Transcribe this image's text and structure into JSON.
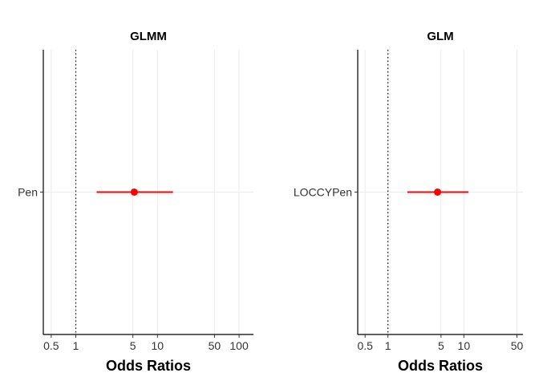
{
  "chart_data": [
    {
      "type": "forest",
      "title": "GLMM",
      "xlabel": "Odds Ratios",
      "xscale": "log",
      "xlim": [
        0.4,
        150
      ],
      "xticks": [
        0.5,
        1,
        5,
        10,
        50,
        100
      ],
      "xtick_labels": [
        "0.5",
        "1",
        "5",
        "10",
        "50",
        "100"
      ],
      "reference_line": 1,
      "categories": [
        "Pen"
      ],
      "estimates": [
        5.2
      ],
      "ci_low": [
        1.8
      ],
      "ci_high": [
        15.5
      ],
      "color": "#ff0000",
      "grid": true
    },
    {
      "type": "forest",
      "title": "GLM",
      "xlabel": "Odds Ratios",
      "xscale": "log",
      "xlim": [
        0.4,
        60
      ],
      "xticks": [
        0.5,
        1,
        5,
        10,
        50
      ],
      "xtick_labels": [
        "0.5",
        "1",
        "5",
        "10",
        "50"
      ],
      "reference_line": 1,
      "categories": [
        "LOCCYPen"
      ],
      "estimates": [
        4.5
      ],
      "ci_low": [
        1.8
      ],
      "ci_high": [
        11.5
      ],
      "color": "#ff0000",
      "grid": true
    }
  ]
}
